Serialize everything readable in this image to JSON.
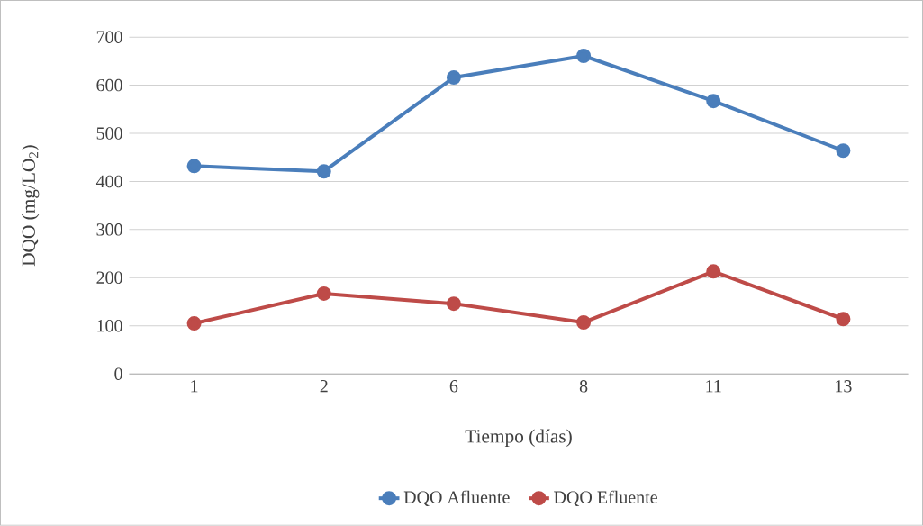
{
  "chart_data": {
    "type": "line",
    "xlabel": "Tiempo (días)",
    "ylabel": "DQO (mg/LO$_{2}$)",
    "categories": [
      "1",
      "2",
      "6",
      "8",
      "11",
      "13"
    ],
    "series": [
      {
        "name": "DQO Afluente",
        "color": "#4a7ebb",
        "values": [
          432,
          421,
          616,
          661,
          567,
          464
        ]
      },
      {
        "name": "DQO Efluente",
        "color": "#be4b48",
        "values": [
          105,
          167,
          146,
          107,
          213,
          114
        ]
      }
    ],
    "ylim": [
      0,
      700
    ],
    "yticks": [
      0,
      100,
      200,
      300,
      400,
      500,
      600,
      700
    ],
    "grid": "y",
    "legend": "bottom",
    "marker": "circle",
    "line_style": "solid"
  }
}
